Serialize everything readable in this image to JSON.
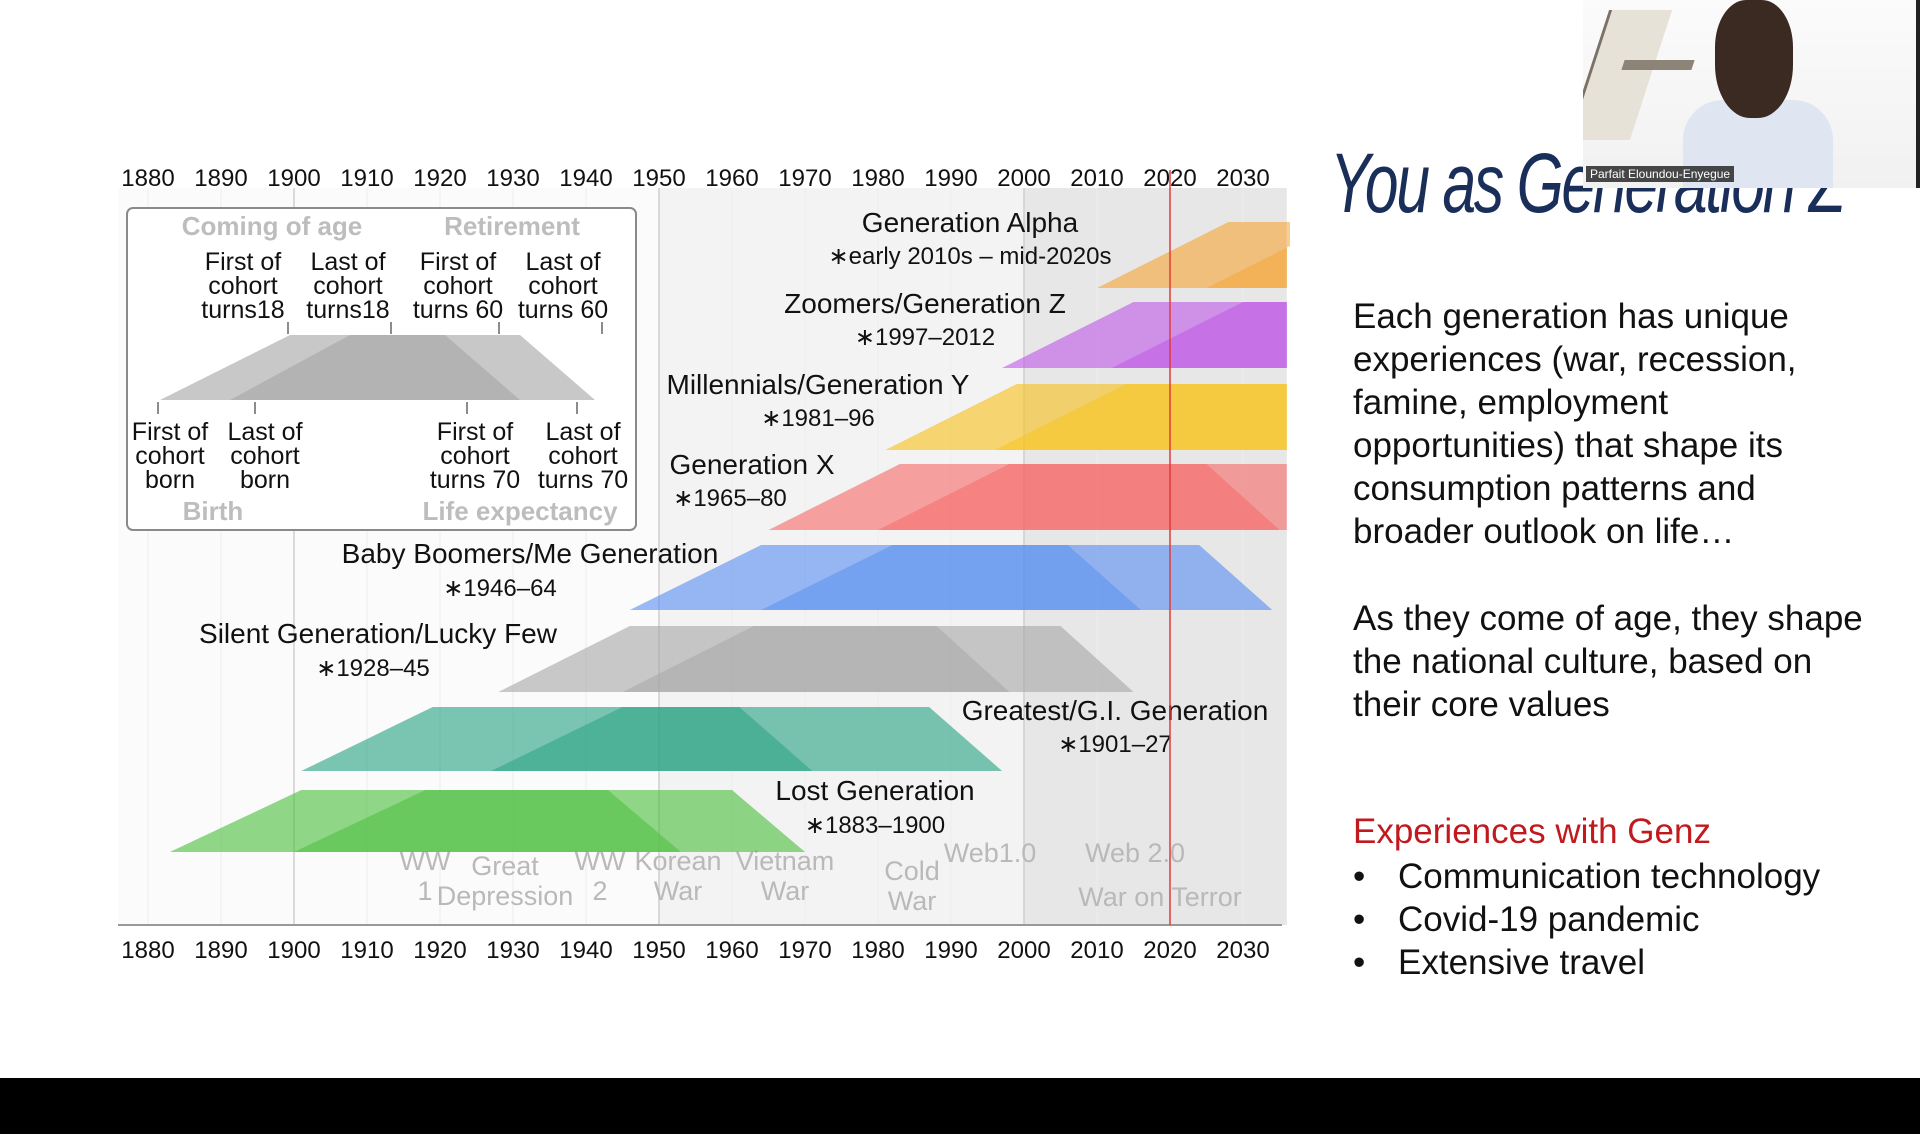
{
  "slide": {
    "title": "You as Generation Z",
    "paragraph_1": "Each generation has unique experiences (war, recession, famine, employment opportunities) that shape its consumption patterns and broader outlook on life…",
    "paragraph_2": "As they come of age, they shape the national culture, based on their core values",
    "experiences_heading": "Experiences with Genz",
    "experiences": [
      "Communication technology",
      "Covid-19 pandemic",
      "Extensive travel"
    ]
  },
  "webcam": {
    "participant_name": "Parfait Eloundou-Enyegue"
  },
  "chart_data": {
    "type": "timeline",
    "x_ticks": [
      "1880",
      "1890",
      "1900",
      "1910",
      "1920",
      "1930",
      "1940",
      "1950",
      "1960",
      "1970",
      "1980",
      "1990",
      "2000",
      "2010",
      "2020",
      "2030"
    ],
    "xlim": [
      1876,
      2036
    ],
    "current_year": 2020,
    "generations": [
      {
        "name": "Generation Alpha",
        "range_label": "∗early 2010s – mid-2020s",
        "start": 2010,
        "end": 2025,
        "color": "#f5a63a"
      },
      {
        "name": "Zoomers/Generation Z",
        "range_label": "∗1997–2012",
        "start": 1997,
        "end": 2012,
        "color": "#c05ae6"
      },
      {
        "name": "Millennials/Generation Y",
        "range_label": "∗1981–96",
        "start": 1981,
        "end": 1996,
        "color": "#f7c21e"
      },
      {
        "name": "Generation X",
        "range_label": "∗1965–80",
        "start": 1965,
        "end": 1980,
        "color": "#f56a6a"
      },
      {
        "name": "Baby Boomers/Me Generation",
        "range_label": "∗1946–64",
        "start": 1946,
        "end": 1964,
        "color": "#5b8ff0"
      },
      {
        "name": "Silent Generation/Lucky Few",
        "range_label": "∗1928–45",
        "start": 1928,
        "end": 1945,
        "color": "#a8a8a8"
      },
      {
        "name": "Greatest/G.I. Generation",
        "range_label": "∗1901–27",
        "start": 1901,
        "end": 1927,
        "color": "#2aa383"
      },
      {
        "name": "Lost Generation",
        "range_label": "∗1883–1900",
        "start": 1883,
        "end": 1900,
        "color": "#4cbf3e"
      }
    ],
    "legend": {
      "coming_of_age": "Coming of age",
      "retirement": "Retirement",
      "birth": "Birth",
      "life_expectancy": "Life expectancy",
      "top_labels": [
        [
          "First of",
          "cohort",
          "turns18"
        ],
        [
          "Last of",
          "cohort",
          "turns18"
        ],
        [
          "First of",
          "cohort",
          "turns 60"
        ],
        [
          "Last of",
          "cohort",
          "turns 60"
        ]
      ],
      "bottom_labels": [
        [
          "First of",
          "cohort",
          "born"
        ],
        [
          "Last of",
          "cohort",
          "born"
        ],
        [
          "First of",
          "cohort",
          "turns 70"
        ],
        [
          "Last of",
          "cohort",
          "turns 70"
        ]
      ]
    },
    "events": [
      {
        "lines": [
          "WW",
          "1"
        ],
        "year": 1918
      },
      {
        "lines": [
          "Great",
          "Depression"
        ],
        "year": 1935
      },
      {
        "lines": [
          "WW",
          "2"
        ],
        "year": 1945
      },
      {
        "lines": [
          "Korean",
          "War"
        ],
        "year": 1952
      },
      {
        "lines": [
          "Vietnam",
          "War"
        ],
        "year": 1967
      },
      {
        "lines": [
          "Cold",
          "War"
        ],
        "year": 1985
      },
      {
        "lines": [
          "Web1.0"
        ],
        "year": 2000
      },
      {
        "lines": [
          "Web 2.0"
        ],
        "year": 2016
      },
      {
        "lines": [
          "War on Terror"
        ],
        "year": 2016
      }
    ]
  }
}
